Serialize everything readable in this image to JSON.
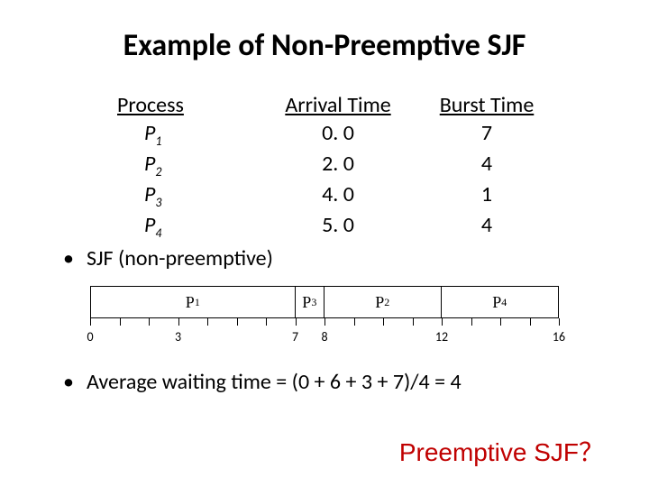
{
  "title": "Example of Non-Preemptive SJF",
  "table": {
    "headers": {
      "process": "Process",
      "arrival": "Arrival Time",
      "burst": "Burst Time"
    },
    "rows": [
      {
        "name": "P",
        "sub": "1",
        "arrival": "0. 0",
        "burst": "7"
      },
      {
        "name": "P",
        "sub": "2",
        "arrival": "2. 0",
        "burst": "4"
      },
      {
        "name": "P",
        "sub": "3",
        "arrival": "4. 0",
        "burst": "1"
      },
      {
        "name": "P",
        "sub": "4",
        "arrival": "5. 0",
        "burst": "4"
      }
    ]
  },
  "bullet1": "SJF (non-preemptive)",
  "gantt": {
    "total": 16,
    "segments": [
      {
        "label": "P",
        "sub": "1",
        "start": 0,
        "end": 7
      },
      {
        "label": "P",
        "sub": "3",
        "start": 7,
        "end": 8
      },
      {
        "label": "P",
        "sub": "2",
        "start": 8,
        "end": 12
      },
      {
        "label": "P",
        "sub": "4",
        "start": 12,
        "end": 16
      }
    ],
    "tick_major": [
      0,
      3,
      7,
      8,
      12,
      16
    ],
    "tick_all": [
      0,
      1,
      2,
      3,
      4,
      5,
      6,
      7,
      8,
      9,
      10,
      11,
      12,
      13,
      14,
      15,
      16
    ]
  },
  "avg_line": "Average waiting time = (0 + 6 + 3 + 7)/4  = 4",
  "teaser": {
    "text": "Preemptive SJF",
    "qmark": "？"
  },
  "colors": {
    "text": "#000000",
    "teaser": "#c00000",
    "bg": "#ffffff"
  }
}
